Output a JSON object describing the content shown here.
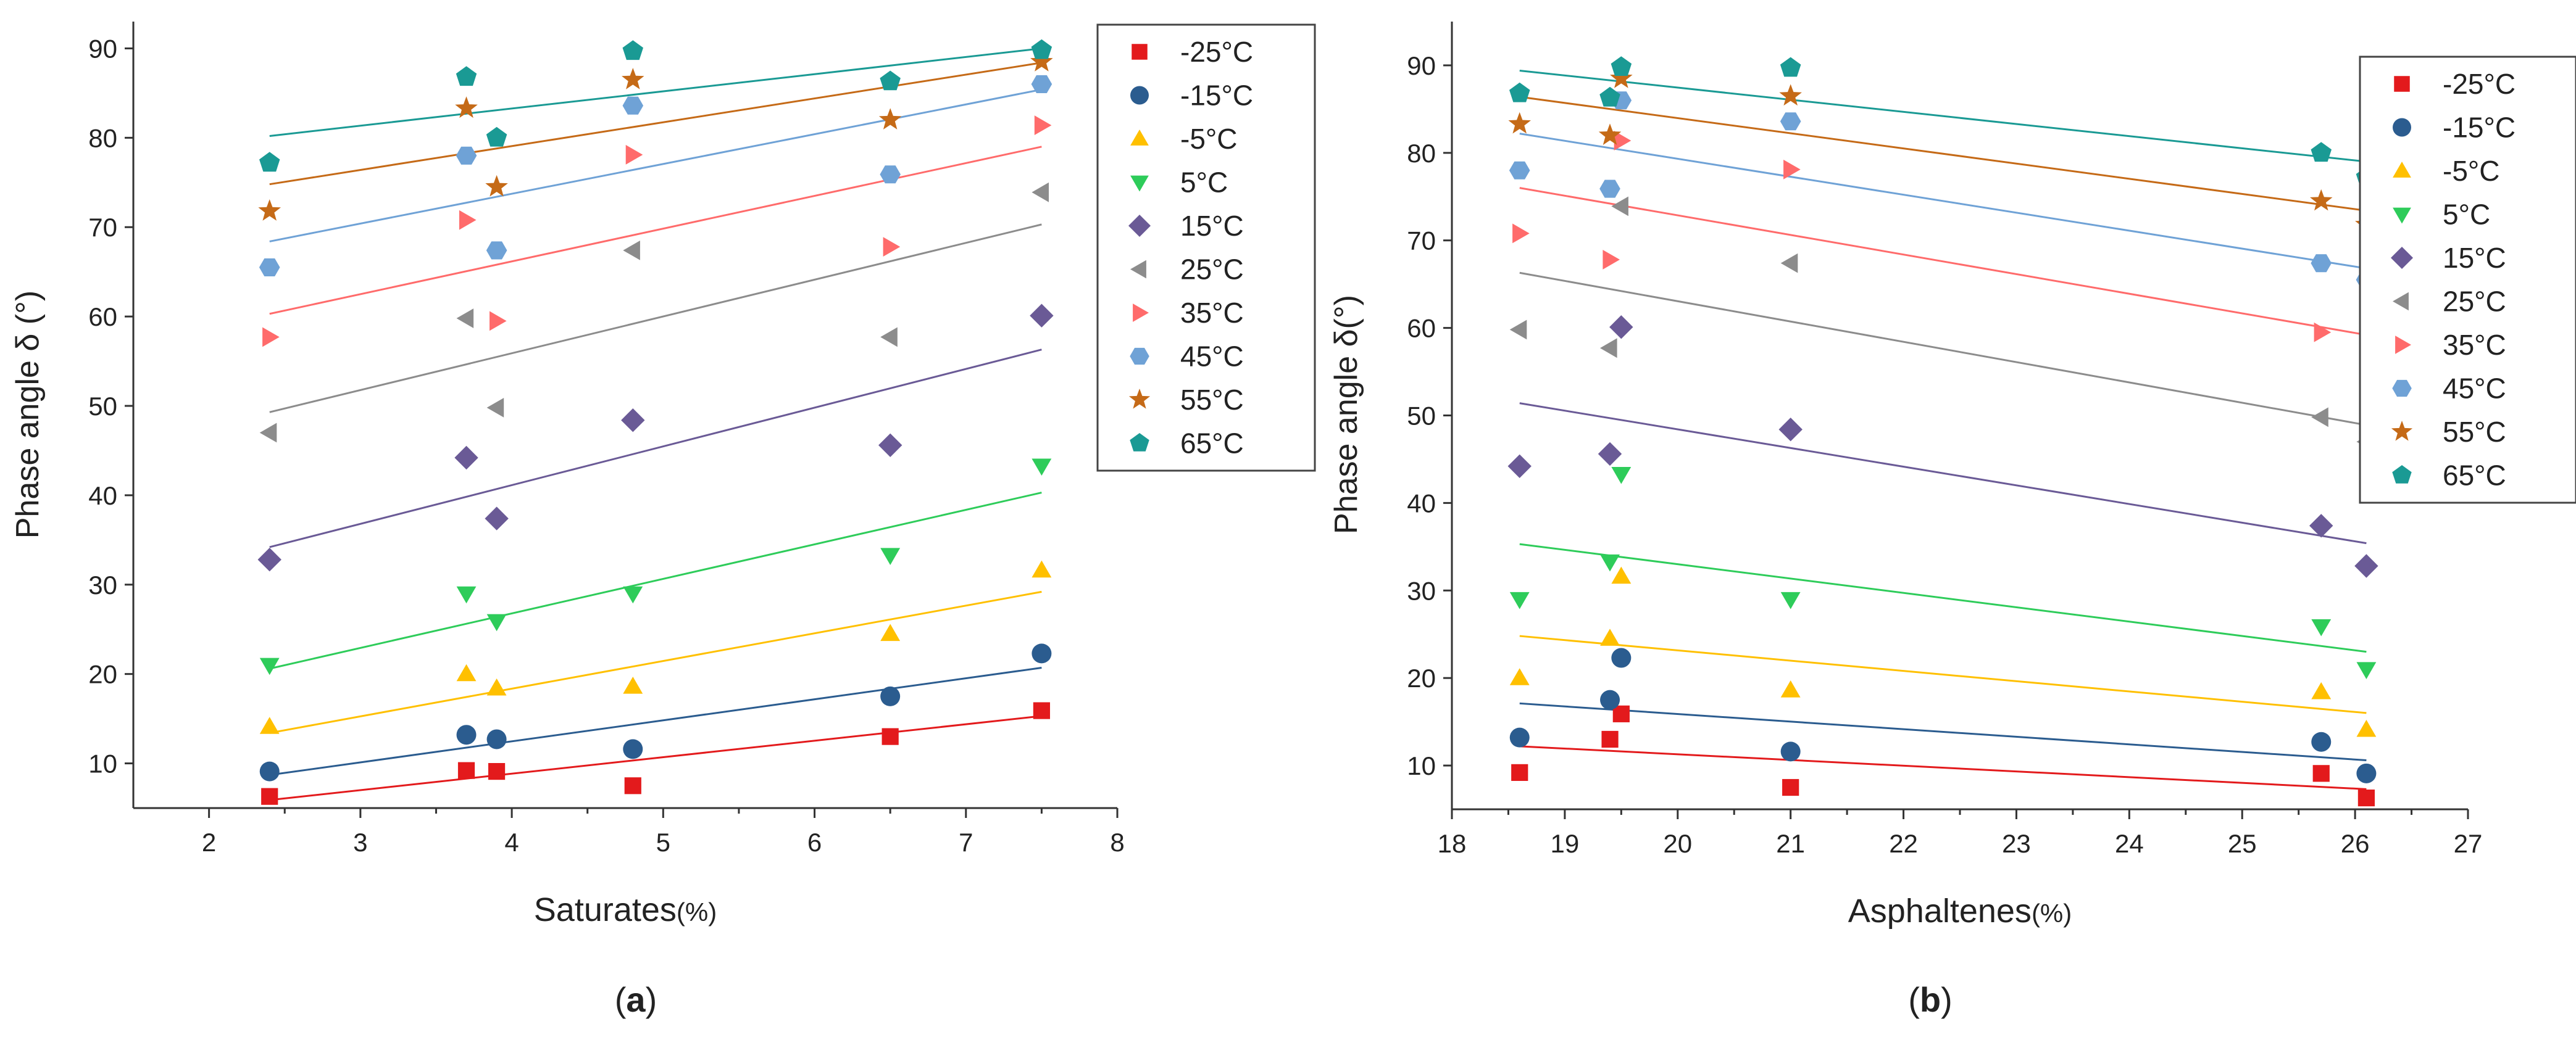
{
  "colors": {
    "-25°C": "#e31a1c",
    "-15°C": "#2b5c8f",
    "-5°C": "#ffc000",
    "5°C": "#2ecc5a",
    "15°C": "#6a5a96",
    "25°C": "#8c8c8c",
    "35°C": "#ff6b6b",
    "45°C": "#6fa2d6",
    "55°C": "#c56a17",
    "65°C": "#1a9a94"
  },
  "chart_data": [
    {
      "type": "scatter",
      "panel_label": "(a)",
      "panel_letter": "a",
      "xlabel": "Saturates",
      "xunit": "(%)",
      "ylabel": "Phase angle δ (°)",
      "xlim": [
        1.5,
        8
      ],
      "ylim": [
        5,
        93
      ],
      "xticks": [
        2,
        3,
        4,
        5,
        6,
        7,
        8
      ],
      "yticks": [
        10,
        20,
        30,
        40,
        50,
        60,
        70,
        80,
        90
      ],
      "trendline": true,
      "legend_position": "top-right",
      "series": [
        {
          "name": "-25°C",
          "marker": "square",
          "x": [
            2.4,
            3.7,
            3.9,
            4.8,
            6.5,
            7.5
          ],
          "y": [
            6.3,
            9.2,
            9.1,
            7.5,
            13.0,
            15.9
          ],
          "fit": [
            [
              2.4,
              5.9
            ],
            [
              7.5,
              15.3
            ]
          ]
        },
        {
          "name": "-15°C",
          "marker": "circle",
          "x": [
            2.4,
            3.7,
            3.9,
            4.8,
            6.5,
            7.5
          ],
          "y": [
            9.1,
            13.2,
            12.7,
            11.6,
            17.5,
            22.3
          ],
          "fit": [
            [
              2.4,
              8.7
            ],
            [
              7.5,
              20.7
            ]
          ]
        },
        {
          "name": "-5°C",
          "marker": "triangle-up",
          "x": [
            2.4,
            3.7,
            3.9,
            4.8,
            6.5,
            7.5
          ],
          "y": [
            14.1,
            20.0,
            18.4,
            18.6,
            24.5,
            31.6
          ],
          "fit": [
            [
              2.4,
              13.4
            ],
            [
              7.5,
              29.2
            ]
          ]
        },
        {
          "name": "5°C",
          "marker": "triangle-down",
          "x": [
            2.4,
            3.7,
            3.9,
            4.8,
            6.5,
            7.5
          ],
          "y": [
            21.0,
            29.0,
            25.9,
            29.0,
            33.3,
            43.3
          ],
          "fit": [
            [
              2.4,
              20.6
            ],
            [
              7.5,
              40.3
            ]
          ]
        },
        {
          "name": "15°C",
          "marker": "diamond",
          "x": [
            2.4,
            3.7,
            3.9,
            4.8,
            6.5,
            7.5
          ],
          "y": [
            32.8,
            44.2,
            37.4,
            48.4,
            45.6,
            60.1
          ],
          "fit": [
            [
              2.4,
              34.2
            ],
            [
              7.5,
              56.3
            ]
          ]
        },
        {
          "name": "25°C",
          "marker": "triangle-left",
          "x": [
            2.4,
            3.7,
            3.9,
            4.8,
            6.5,
            7.5
          ],
          "y": [
            47.0,
            59.8,
            49.8,
            67.4,
            57.7,
            73.9
          ],
          "fit": [
            [
              2.4,
              49.3
            ],
            [
              7.5,
              70.3
            ]
          ]
        },
        {
          "name": "35°C",
          "marker": "triangle-right",
          "x": [
            2.4,
            3.7,
            3.9,
            4.8,
            6.5,
            7.5
          ],
          "y": [
            57.7,
            70.8,
            59.5,
            78.1,
            67.8,
            81.4
          ],
          "fit": [
            [
              2.4,
              60.3
            ],
            [
              7.5,
              79.0
            ]
          ]
        },
        {
          "name": "45°C",
          "marker": "hexagon",
          "x": [
            2.4,
            3.7,
            3.9,
            4.8,
            6.5,
            7.5
          ],
          "y": [
            65.5,
            78.0,
            67.4,
            83.6,
            75.9,
            86.0
          ],
          "fit": [
            [
              2.4,
              68.4
            ],
            [
              7.5,
              85.4
            ]
          ]
        },
        {
          "name": "55°C",
          "marker": "star",
          "x": [
            2.4,
            3.7,
            3.9,
            4.8,
            6.5,
            7.5
          ],
          "y": [
            71.8,
            83.3,
            74.5,
            86.5,
            82.0,
            88.5
          ],
          "fit": [
            [
              2.4,
              74.8
            ],
            [
              7.5,
              88.4
            ]
          ]
        },
        {
          "name": "65°C",
          "marker": "pentagon",
          "x": [
            2.4,
            3.7,
            3.9,
            4.8,
            6.5,
            7.5
          ],
          "y": [
            77.2,
            86.8,
            80.0,
            89.7,
            86.3,
            89.8
          ],
          "fit": [
            [
              2.4,
              80.2
            ],
            [
              7.5,
              90.0
            ]
          ]
        }
      ]
    },
    {
      "type": "scatter",
      "panel_label": "(b)",
      "panel_letter": "b",
      "xlabel": "Asphaltenes",
      "xunit": "(%)",
      "ylabel": "Phase angle δ(°)",
      "xlim": [
        18,
        27
      ],
      "ylim": [
        5,
        95
      ],
      "xticks": [
        18,
        19,
        20,
        21,
        22,
        23,
        24,
        25,
        26,
        27
      ],
      "yticks": [
        10,
        20,
        30,
        40,
        50,
        60,
        70,
        80,
        90
      ],
      "trendline": true,
      "legend_position": "top-right",
      "series": [
        {
          "name": "-25°C",
          "marker": "square",
          "x": [
            18.6,
            19.4,
            19.5,
            21.0,
            25.7,
            26.1
          ],
          "y": [
            9.2,
            13.0,
            15.9,
            7.5,
            9.1,
            6.3
          ],
          "fit": [
            [
              18.6,
              12.2
            ],
            [
              26.1,
              7.3
            ]
          ]
        },
        {
          "name": "-15°C",
          "marker": "circle",
          "x": [
            18.6,
            19.4,
            19.5,
            21.0,
            25.7,
            26.1
          ],
          "y": [
            13.2,
            17.5,
            22.3,
            11.6,
            12.7,
            9.1
          ],
          "fit": [
            [
              18.6,
              17.1
            ],
            [
              26.1,
              10.6
            ]
          ]
        },
        {
          "name": "-5°C",
          "marker": "triangle-up",
          "x": [
            18.6,
            19.4,
            19.5,
            21.0,
            25.7,
            26.1
          ],
          "y": [
            20.0,
            24.5,
            31.6,
            18.6,
            18.4,
            14.1
          ],
          "fit": [
            [
              18.6,
              24.8
            ],
            [
              26.1,
              16.0
            ]
          ]
        },
        {
          "name": "5°C",
          "marker": "triangle-down",
          "x": [
            18.6,
            19.4,
            19.5,
            21.0,
            25.7,
            26.1
          ],
          "y": [
            29.0,
            33.3,
            43.3,
            29.0,
            25.9,
            21.0
          ],
          "fit": [
            [
              18.6,
              35.3
            ],
            [
              26.1,
              23.0
            ]
          ]
        },
        {
          "name": "15°C",
          "marker": "diamond",
          "x": [
            18.6,
            19.4,
            19.5,
            21.0,
            25.7,
            26.1
          ],
          "y": [
            44.2,
            45.6,
            60.1,
            48.4,
            37.4,
            32.8
          ],
          "fit": [
            [
              18.6,
              51.4
            ],
            [
              26.1,
              35.4
            ]
          ]
        },
        {
          "name": "25°C",
          "marker": "triangle-left",
          "x": [
            18.6,
            19.4,
            19.5,
            21.0,
            25.7,
            26.1
          ],
          "y": [
            59.8,
            57.7,
            73.9,
            67.4,
            49.8,
            47.0
          ],
          "fit": [
            [
              18.6,
              66.3
            ],
            [
              26.1,
              48.9
            ]
          ]
        },
        {
          "name": "35°C",
          "marker": "triangle-right",
          "x": [
            18.6,
            19.4,
            19.5,
            21.0,
            25.7,
            26.1
          ],
          "y": [
            70.8,
            67.8,
            81.4,
            78.1,
            59.5,
            57.7
          ],
          "fit": [
            [
              18.6,
              76.0
            ],
            [
              26.1,
              59.2
            ]
          ]
        },
        {
          "name": "45°C",
          "marker": "hexagon",
          "x": [
            18.6,
            19.4,
            19.5,
            21.0,
            25.7,
            26.1
          ],
          "y": [
            78.0,
            75.9,
            86.0,
            83.6,
            67.4,
            65.5
          ],
          "fit": [
            [
              18.6,
              82.2
            ],
            [
              26.1,
              66.8
            ]
          ]
        },
        {
          "name": "55°C",
          "marker": "star",
          "x": [
            18.6,
            19.4,
            19.5,
            21.0,
            25.7,
            26.1
          ],
          "y": [
            83.3,
            82.0,
            88.5,
            86.5,
            74.5,
            71.8
          ],
          "fit": [
            [
              18.6,
              86.4
            ],
            [
              26.1,
              73.4
            ]
          ]
        },
        {
          "name": "65°C",
          "marker": "pentagon",
          "x": [
            18.6,
            19.4,
            19.5,
            21.0,
            25.7,
            26.1
          ],
          "y": [
            86.8,
            86.3,
            89.8,
            89.7,
            80.0,
            77.2
          ],
          "fit": [
            [
              18.6,
              89.4
            ],
            [
              26.1,
              79.0
            ]
          ]
        }
      ]
    }
  ]
}
